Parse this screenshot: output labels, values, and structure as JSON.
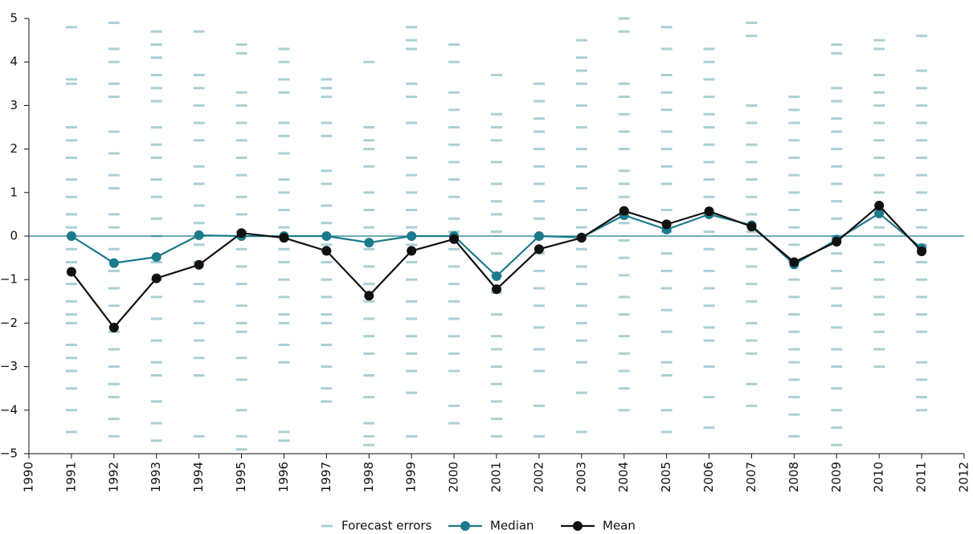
{
  "chart_data": {
    "type": "line",
    "x": [
      1991,
      1992,
      1993,
      1994,
      1995,
      1996,
      1997,
      1998,
      1999,
      2000,
      2001,
      2002,
      2003,
      2004,
      2005,
      2006,
      2007,
      2008,
      2009,
      2010,
      2011
    ],
    "xlim": [
      1990,
      2012
    ],
    "xticks": [
      1990,
      1991,
      1992,
      1993,
      1994,
      1995,
      1996,
      1997,
      1998,
      1999,
      2000,
      2001,
      2002,
      2003,
      2004,
      2005,
      2006,
      2007,
      2008,
      2009,
      2010,
      2011,
      2012
    ],
    "ylim": [
      -5,
      5
    ],
    "yticks": [
      {
        "value": -5,
        "label": "−5"
      },
      {
        "value": -4,
        "label": "−4"
      },
      {
        "value": -3,
        "label": "−3"
      },
      {
        "value": -2,
        "label": "−2"
      },
      {
        "value": -1,
        "label": "−1"
      },
      0,
      1,
      2,
      3,
      4,
      5
    ],
    "series": [
      {
        "name": "Forecast errors",
        "color": "#a9d0d6",
        "kind": "dashes",
        "values": [
          [
            4.8,
            3.6,
            3.5,
            2.5,
            2.2,
            1.8,
            1.3,
            0.9,
            0.5,
            0.2,
            -0.3,
            -0.6,
            -1.1,
            -1.5,
            -1.8,
            -2.0,
            -2.5,
            -2.8,
            -3.1,
            -3.5,
            -4.0,
            -4.5
          ],
          [
            4.9,
            4.3,
            4.0,
            3.5,
            3.2,
            2.4,
            1.9,
            1.4,
            1.1,
            0.5,
            0.2,
            -0.3,
            -0.8,
            -1.2,
            -1.6,
            -2.2,
            -2.6,
            -3.0,
            -3.4,
            -3.7,
            -4.2,
            -4.6
          ],
          [
            4.7,
            4.4,
            4.1,
            3.7,
            3.4,
            3.1,
            2.5,
            2.1,
            1.8,
            1.3,
            0.9,
            0.4,
            0.0,
            -0.6,
            -1.0,
            -1.4,
            -1.9,
            -2.4,
            -2.9,
            -3.2,
            -3.8,
            -4.3,
            -4.7
          ],
          [
            4.7,
            3.7,
            3.4,
            3.0,
            2.6,
            2.2,
            1.6,
            1.2,
            0.7,
            0.3,
            -0.2,
            -0.6,
            -1.1,
            -1.5,
            -2.0,
            -2.4,
            -2.8,
            -3.2,
            -4.6
          ],
          [
            4.4,
            4.2,
            3.3,
            3.0,
            2.6,
            2.2,
            1.8,
            1.4,
            0.9,
            0.5,
            0.1,
            -0.3,
            -0.7,
            -1.1,
            -1.6,
            -2.0,
            -2.2,
            -2.8,
            -3.3,
            -4.0,
            -4.6,
            -4.9
          ],
          [
            4.3,
            4.0,
            3.6,
            3.3,
            2.6,
            2.3,
            1.9,
            1.3,
            1.0,
            0.6,
            0.2,
            -0.3,
            -0.6,
            -1.0,
            -1.4,
            -1.8,
            -2.0,
            -2.5,
            -2.9,
            -4.5,
            -4.7
          ],
          [
            3.6,
            3.4,
            3.2,
            2.6,
            2.3,
            1.5,
            1.2,
            0.7,
            0.3,
            -0.2,
            -0.6,
            -1.0,
            -1.4,
            -1.8,
            -2.0,
            -2.5,
            -3.0,
            -3.5,
            -3.8
          ],
          [
            4.0,
            2.5,
            2.2,
            2.0,
            1.6,
            1.0,
            0.6,
            0.2,
            -0.3,
            -0.7,
            -1.1,
            -1.5,
            -1.9,
            -2.3,
            -2.7,
            -3.2,
            -3.7,
            -4.3,
            -4.6,
            -4.8
          ],
          [
            4.8,
            4.5,
            4.3,
            3.5,
            3.2,
            2.6,
            1.8,
            1.4,
            1.0,
            0.6,
            0.2,
            -0.2,
            -0.6,
            -1.0,
            -1.5,
            -1.9,
            -2.3,
            -2.7,
            -3.1,
            -3.6,
            -4.6
          ],
          [
            4.4,
            4.0,
            3.3,
            2.9,
            2.5,
            2.1,
            1.7,
            1.3,
            0.9,
            0.4,
            0.1,
            -0.3,
            -0.7,
            -1.1,
            -1.5,
            -1.9,
            -2.3,
            -2.7,
            -3.1,
            -3.9,
            -4.3
          ],
          [
            3.7,
            2.8,
            2.5,
            2.2,
            1.7,
            1.2,
            0.8,
            0.5,
            0.1,
            -0.4,
            -0.9,
            -1.3,
            -1.8,
            -2.3,
            -2.6,
            -3.0,
            -3.4,
            -3.8,
            -4.2,
            -4.6
          ],
          [
            3.5,
            3.1,
            2.7,
            2.4,
            2.0,
            1.6,
            1.2,
            0.8,
            0.4,
            0.0,
            -0.4,
            -0.8,
            -1.2,
            -1.6,
            -2.1,
            -2.6,
            -3.1,
            -3.9,
            -4.6
          ],
          [
            4.5,
            4.1,
            3.8,
            3.5,
            3.0,
            2.5,
            2.0,
            1.6,
            1.1,
            0.6,
            0.2,
            -0.3,
            -0.7,
            -1.1,
            -1.6,
            -2.0,
            -2.4,
            -2.9,
            -3.6,
            -4.5
          ],
          [
            5.0,
            4.7,
            3.5,
            3.2,
            2.8,
            2.4,
            2.0,
            1.5,
            1.2,
            0.9,
            0.3,
            -0.1,
            -0.5,
            -0.9,
            -1.4,
            -1.8,
            -2.3,
            -2.7,
            -3.1,
            -3.5,
            -4.0
          ],
          [
            4.8,
            4.3,
            3.7,
            3.3,
            2.9,
            2.4,
            2.0,
            1.6,
            1.2,
            0.6,
            0.1,
            -0.4,
            -0.8,
            -1.2,
            -1.7,
            -2.2,
            -2.9,
            -3.2,
            -4.0,
            -4.5
          ],
          [
            4.3,
            4.0,
            3.6,
            3.2,
            2.8,
            2.5,
            2.1,
            1.7,
            1.3,
            0.9,
            0.5,
            0.1,
            -0.3,
            -0.8,
            -1.2,
            -1.6,
            -2.1,
            -2.4,
            -3.0,
            -3.7,
            -4.4
          ],
          [
            4.9,
            4.6,
            3.0,
            2.6,
            2.1,
            1.7,
            1.3,
            0.9,
            0.5,
            0.1,
            -0.3,
            -0.7,
            -1.1,
            -1.5,
            -2.0,
            -2.4,
            -2.7,
            -3.4,
            -3.9
          ],
          [
            3.2,
            2.9,
            2.6,
            2.2,
            1.8,
            1.4,
            1.0,
            0.6,
            0.2,
            -0.2,
            -0.6,
            -1.0,
            -1.4,
            -1.8,
            -2.2,
            -2.6,
            -2.9,
            -3.3,
            -3.7,
            -4.1,
            -4.6
          ],
          [
            4.4,
            4.2,
            3.4,
            3.1,
            2.7,
            2.4,
            2.0,
            1.6,
            1.2,
            0.8,
            0.4,
            0.0,
            -0.4,
            -0.8,
            -1.2,
            -1.6,
            -2.1,
            -2.6,
            -3.0,
            -3.5,
            -4.0,
            -4.4,
            -4.8
          ],
          [
            4.5,
            4.3,
            3.7,
            3.3,
            3.0,
            2.6,
            2.2,
            1.8,
            1.4,
            1.0,
            0.6,
            0.2,
            -0.2,
            -0.6,
            -1.0,
            -1.4,
            -1.8,
            -2.2,
            -2.6,
            -3.0
          ],
          [
            4.6,
            3.8,
            3.4,
            3.0,
            2.6,
            2.2,
            1.8,
            1.4,
            1.0,
            0.6,
            0.2,
            -0.2,
            -0.6,
            -1.0,
            -1.4,
            -1.8,
            -2.2,
            -2.9,
            -3.3,
            -3.7,
            -4.0
          ]
        ]
      },
      {
        "name": "Median",
        "color": "#1c7a8c",
        "kind": "line",
        "values": [
          0,
          -0.62,
          -0.48,
          0.02,
          0,
          0,
          0,
          -0.15,
          0,
          0,
          -0.92,
          0,
          -0.03,
          0.48,
          0.15,
          0.5,
          0.25,
          -0.65,
          -0.08,
          0.52,
          -0.28
        ]
      },
      {
        "name": "Mean",
        "color": "#111111",
        "kind": "line",
        "values": [
          -0.82,
          -2.1,
          -0.97,
          -0.66,
          0.07,
          -0.04,
          -0.34,
          -1.37,
          -0.34,
          -0.07,
          -1.22,
          -0.3,
          -0.04,
          0.58,
          0.27,
          0.57,
          0.22,
          -0.6,
          -0.13,
          0.7,
          -0.35
        ]
      }
    ],
    "zero_line_color": "#1c7a8c"
  }
}
